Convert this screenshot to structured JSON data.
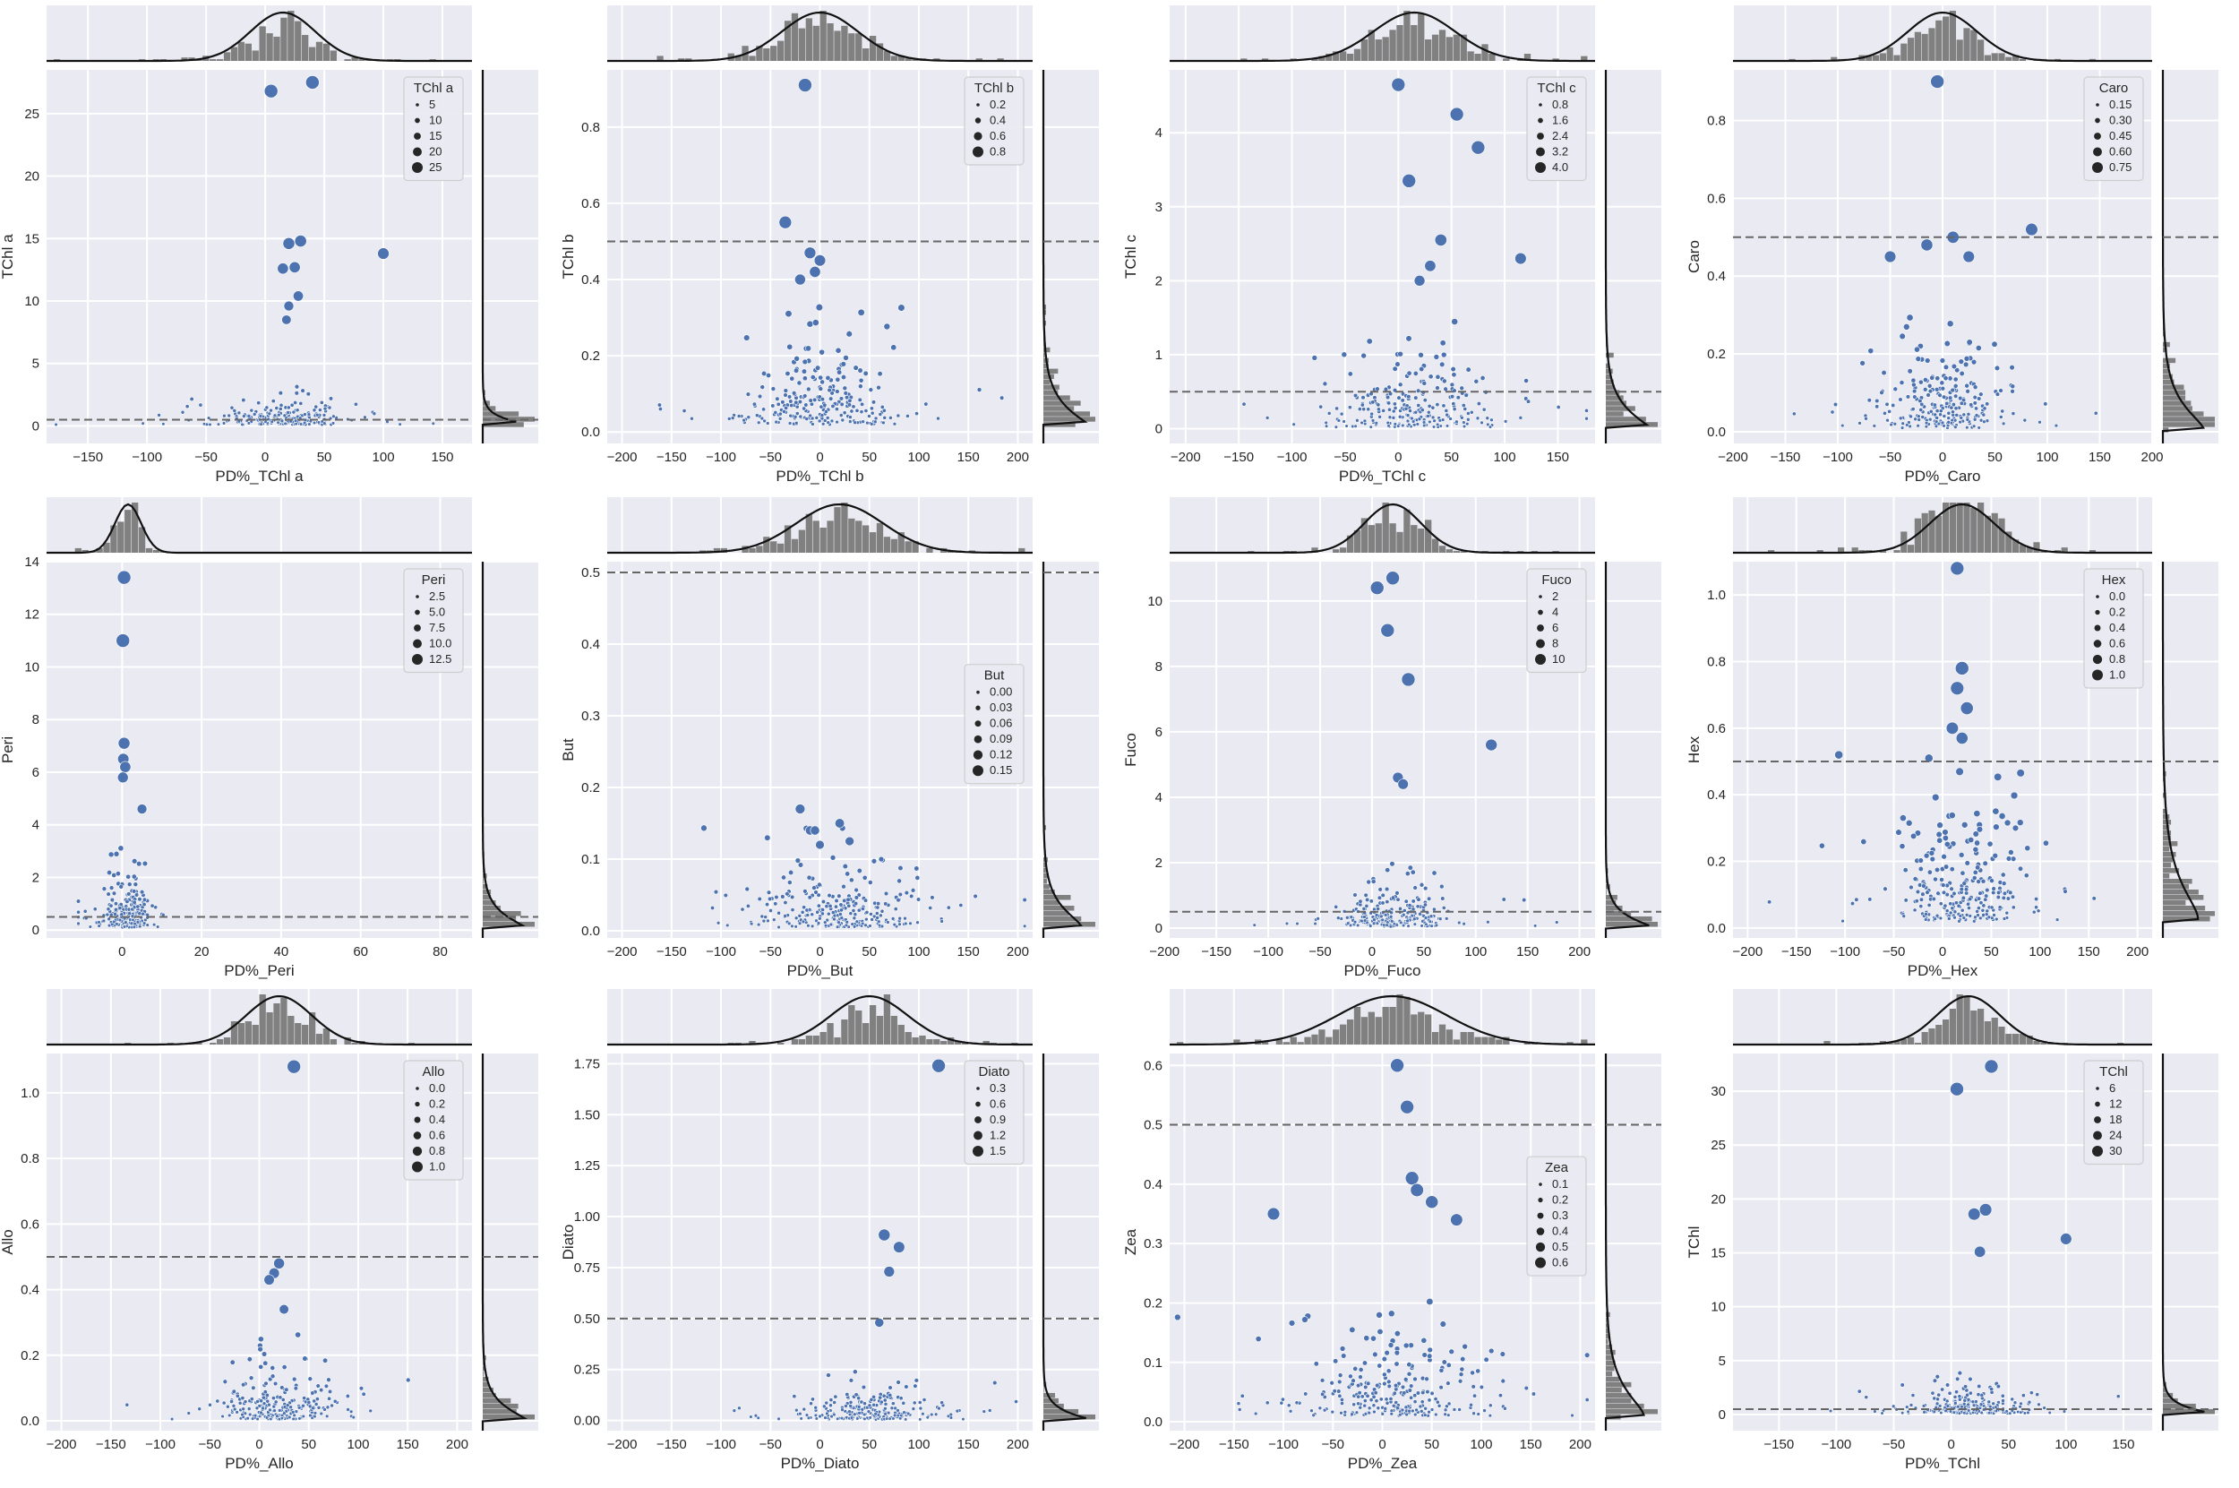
{
  "chart_data": [
    {
      "type": "scatter",
      "marginal": "histogram+kde",
      "xlabel": "PD%_TChl a",
      "ylabel": "TChl a",
      "legend_title": "TChl a",
      "legend_labels": [
        "5",
        "10",
        "15",
        "20",
        "25"
      ],
      "legend_placement": "top-right",
      "xlim": [
        -185,
        175
      ],
      "ylim": [
        -1.4,
        28.5
      ],
      "xticks": [
        -150,
        -100,
        -50,
        0,
        50,
        100,
        150
      ],
      "yticks": [
        0,
        5,
        10,
        15,
        20,
        25
      ],
      "hline": 0.5,
      "grid": true,
      "xtick_labels": [
        "−150",
        "−100",
        "−50",
        "0",
        "50",
        "100",
        "150"
      ],
      "ytick_labels": [
        "0",
        "5",
        "10",
        "15",
        "20",
        "25"
      ],
      "highlights": [
        [
          5,
          26.8
        ],
        [
          40,
          27.5
        ],
        [
          20,
          14.6
        ],
        [
          30,
          14.8
        ],
        [
          100,
          13.8
        ],
        [
          25,
          12.7
        ],
        [
          15,
          12.6
        ],
        [
          28,
          10.4
        ],
        [
          20,
          9.6
        ],
        [
          18,
          8.5
        ]
      ],
      "cloud": {
        "cx": 15,
        "sx": 25,
        "y0": 0.1,
        "yk": 0.6,
        "n": 240
      }
    },
    {
      "type": "scatter",
      "marginal": "histogram+kde",
      "xlabel": "PD%_TChl b",
      "ylabel": "TChl b",
      "legend_title": "TChl b",
      "legend_labels": [
        "0.2",
        "0.4",
        "0.6",
        "0.8"
      ],
      "legend_placement": "top-right",
      "xlim": [
        -215,
        215
      ],
      "ylim": [
        -0.03,
        0.95
      ],
      "xticks": [
        -200,
        -150,
        -100,
        -50,
        0,
        50,
        100,
        150,
        200
      ],
      "yticks": [
        0,
        0.2,
        0.4,
        0.6,
        0.8
      ],
      "hline": 0.5,
      "grid": true,
      "xtick_labels": [
        "−200",
        "−150",
        "−100",
        "−50",
        "0",
        "50",
        "100",
        "150",
        "200"
      ],
      "ytick_labels": [
        "0.0",
        "0.2",
        "0.4",
        "0.6",
        "0.8"
      ],
      "highlights": [
        [
          -15,
          0.91
        ],
        [
          -35,
          0.55
        ],
        [
          -10,
          0.47
        ],
        [
          0,
          0.45
        ],
        [
          -5,
          0.42
        ],
        [
          -20,
          0.4
        ]
      ],
      "cloud": {
        "cx": 0,
        "sx": 35,
        "y0": 0.02,
        "yk": 0.06,
        "n": 240
      }
    },
    {
      "type": "scatter",
      "marginal": "histogram+kde",
      "xlabel": "PD%_TChl c",
      "ylabel": "TChl c",
      "legend_title": "TChl c",
      "legend_labels": [
        "0.8",
        "1.6",
        "2.4",
        "3.2",
        "4.0"
      ],
      "legend_placement": "top-right",
      "xlim": [
        -215,
        185
      ],
      "ylim": [
        -0.2,
        4.85
      ],
      "xticks": [
        -200,
        -150,
        -100,
        -50,
        0,
        50,
        100,
        150
      ],
      "yticks": [
        0,
        1,
        2,
        3,
        4
      ],
      "hline": 0.5,
      "grid": true,
      "xtick_labels": [
        "−200",
        "−150",
        "−100",
        "−50",
        "0",
        "50",
        "100",
        "150"
      ],
      "ytick_labels": [
        "0",
        "1",
        "2",
        "3",
        "4"
      ],
      "highlights": [
        [
          0,
          4.65
        ],
        [
          55,
          4.25
        ],
        [
          75,
          3.8
        ],
        [
          10,
          3.35
        ],
        [
          40,
          2.55
        ],
        [
          115,
          2.3
        ],
        [
          30,
          2.2
        ],
        [
          20,
          2.0
        ]
      ],
      "cloud": {
        "cx": 15,
        "sx": 35,
        "y0": 0.02,
        "yk": 0.3,
        "n": 240
      }
    },
    {
      "type": "scatter",
      "marginal": "histogram+kde",
      "xlabel": "PD%_Caro",
      "ylabel": "Caro",
      "legend_title": "Caro",
      "legend_labels": [
        "0.15",
        "0.30",
        "0.45",
        "0.60",
        "0.75"
      ],
      "legend_placement": "top-right",
      "xlim": [
        -200,
        200
      ],
      "ylim": [
        -0.03,
        0.93
      ],
      "xticks": [
        -200,
        -150,
        -100,
        -50,
        0,
        50,
        100,
        150,
        200
      ],
      "yticks": [
        0,
        0.2,
        0.4,
        0.6,
        0.8
      ],
      "hline": 0.5,
      "grid": true,
      "xtick_labels": [
        "−200",
        "−150",
        "−100",
        "−50",
        "0",
        "50",
        "100",
        "150",
        "200"
      ],
      "ytick_labels": [
        "0.0",
        "0.2",
        "0.4",
        "0.6",
        "0.8"
      ],
      "highlights": [
        [
          -5,
          0.9
        ],
        [
          85,
          0.52
        ],
        [
          10,
          0.5
        ],
        [
          -15,
          0.48
        ],
        [
          25,
          0.45
        ],
        [
          -50,
          0.45
        ]
      ],
      "cloud": {
        "cx": 0,
        "sx": 30,
        "y0": 0.01,
        "yk": 0.07,
        "n": 240
      }
    },
    {
      "type": "scatter",
      "marginal": "histogram+kde",
      "xlabel": "PD%_Peri",
      "ylabel": "Peri",
      "legend_title": "Peri",
      "legend_labels": [
        "2.5",
        "5.0",
        "7.5",
        "10.0",
        "12.5"
      ],
      "legend_placement": "top-right",
      "xlim": [
        -19,
        88
      ],
      "ylim": [
        -0.3,
        14
      ],
      "xticks": [
        0,
        20,
        40,
        60,
        80
      ],
      "yticks": [
        0,
        2,
        4,
        6,
        8,
        10,
        12,
        14
      ],
      "hline": 0.5,
      "grid": true,
      "xtick_labels": [
        "0",
        "20",
        "40",
        "60",
        "80"
      ],
      "ytick_labels": [
        "0",
        "2",
        "4",
        "6",
        "8",
        "10",
        "12",
        "14"
      ],
      "highlights": [
        [
          0.5,
          13.4
        ],
        [
          0.2,
          11.0
        ],
        [
          0.5,
          7.1
        ],
        [
          0.3,
          6.5
        ],
        [
          0.8,
          6.2
        ],
        [
          0.2,
          5.8
        ],
        [
          5,
          4.6
        ]
      ],
      "cloud": {
        "cx": 1.5,
        "sx": 3,
        "y0": 0.1,
        "yk": 0.6,
        "n": 230
      }
    },
    {
      "type": "scatter",
      "marginal": "histogram+kde",
      "xlabel": "PD%_But",
      "ylabel": "But",
      "legend_title": "But",
      "legend_labels": [
        "0.00",
        "0.03",
        "0.06",
        "0.09",
        "0.12",
        "0.15"
      ],
      "legend_placement": "center-right",
      "xlim": [
        -215,
        215
      ],
      "ylim": [
        -0.01,
        0.515
      ],
      "xticks": [
        -200,
        -150,
        -100,
        -50,
        0,
        50,
        100,
        150,
        200
      ],
      "yticks": [
        0,
        0.1,
        0.2,
        0.3,
        0.4,
        0.5
      ],
      "hline": 0.5,
      "grid": true,
      "xtick_labels": [
        "−200",
        "−150",
        "−100",
        "−50",
        "0",
        "50",
        "100",
        "150",
        "200"
      ],
      "ytick_labels": [
        "0.0",
        "0.1",
        "0.2",
        "0.3",
        "0.4",
        "0.5"
      ],
      "highlights": [
        [
          -20,
          0.17
        ],
        [
          20,
          0.15
        ],
        [
          -10,
          0.14
        ],
        [
          -5,
          0.14
        ],
        [
          30,
          0.125
        ],
        [
          0,
          0.12
        ]
      ],
      "cloud": {
        "cx": 20,
        "sx": 40,
        "y0": 0.005,
        "yk": 0.03,
        "n": 260
      }
    },
    {
      "type": "scatter",
      "marginal": "histogram+kde",
      "xlabel": "PD%_Fuco",
      "ylabel": "Fuco",
      "legend_title": "Fuco",
      "legend_labels": [
        "2",
        "4",
        "6",
        "8",
        "10"
      ],
      "legend_placement": "top-right",
      "xlim": [
        -195,
        215
      ],
      "ylim": [
        -0.3,
        11.2
      ],
      "xticks": [
        -200,
        -150,
        -100,
        -50,
        0,
        50,
        100,
        150,
        200
      ],
      "yticks": [
        0,
        2,
        4,
        6,
        8,
        10
      ],
      "hline": 0.5,
      "grid": true,
      "xtick_labels": [
        "−200",
        "−150",
        "−100",
        "−50",
        "0",
        "50",
        "100",
        "150",
        "200"
      ],
      "ytick_labels": [
        "0",
        "2",
        "4",
        "6",
        "8",
        "10"
      ],
      "highlights": [
        [
          20,
          10.7
        ],
        [
          5,
          10.4
        ],
        [
          15,
          9.1
        ],
        [
          35,
          7.6
        ],
        [
          115,
          5.6
        ],
        [
          25,
          4.6
        ],
        [
          30,
          4.4
        ]
      ],
      "cloud": {
        "cx": 20,
        "sx": 25,
        "y0": 0.05,
        "yk": 0.4,
        "n": 240
      }
    },
    {
      "type": "scatter",
      "marginal": "histogram+kde",
      "xlabel": "PD%_Hex",
      "ylabel": "Hex",
      "legend_title": "Hex",
      "legend_labels": [
        "0.0",
        "0.2",
        "0.4",
        "0.6",
        "0.8",
        "1.0"
      ],
      "legend_placement": "top-right",
      "xlim": [
        -215,
        215
      ],
      "ylim": [
        -0.03,
        1.1
      ],
      "xticks": [
        -200,
        -150,
        -100,
        -50,
        0,
        50,
        100,
        150,
        200
      ],
      "yticks": [
        0,
        0.2,
        0.4,
        0.6,
        0.8,
        1.0
      ],
      "hline": 0.5,
      "grid": true,
      "xtick_labels": [
        "−200",
        "−150",
        "−100",
        "−50",
        "0",
        "50",
        "100",
        "150",
        "200"
      ],
      "ytick_labels": [
        "0.0",
        "0.2",
        "0.4",
        "0.6",
        "0.8",
        "1.0"
      ],
      "highlights": [
        [
          15,
          1.08
        ],
        [
          20,
          0.78
        ],
        [
          15,
          0.72
        ],
        [
          25,
          0.66
        ],
        [
          10,
          0.6
        ],
        [
          20,
          0.57
        ]
      ],
      "cloud": {
        "cx": 20,
        "sx": 30,
        "y0": 0.02,
        "yk": 0.12,
        "n": 260
      }
    },
    {
      "type": "scatter",
      "marginal": "histogram+kde",
      "xlabel": "PD%_Allo",
      "ylabel": "Allo",
      "legend_title": "Allo",
      "legend_labels": [
        "0.0",
        "0.2",
        "0.4",
        "0.6",
        "0.8",
        "1.0"
      ],
      "legend_placement": "top-right",
      "xlim": [
        -215,
        215
      ],
      "ylim": [
        -0.03,
        1.12
      ],
      "xticks": [
        -200,
        -150,
        -100,
        -50,
        0,
        50,
        100,
        150,
        200
      ],
      "yticks": [
        0,
        0.2,
        0.4,
        0.6,
        0.8,
        1.0
      ],
      "hline": 0.5,
      "grid": true,
      "xtick_labels": [
        "−200",
        "−150",
        "−100",
        "−50",
        "0",
        "50",
        "100",
        "150",
        "200"
      ],
      "ytick_labels": [
        "0.0",
        "0.2",
        "0.4",
        "0.6",
        "0.8",
        "1.0"
      ],
      "highlights": [
        [
          35,
          1.08
        ],
        [
          20,
          0.48
        ],
        [
          15,
          0.45
        ],
        [
          10,
          0.43
        ],
        [
          25,
          0.34
        ]
      ],
      "cloud": {
        "cx": 20,
        "sx": 30,
        "y0": 0.005,
        "yk": 0.05,
        "n": 240
      }
    },
    {
      "type": "scatter",
      "marginal": "histogram+kde",
      "xlabel": "PD%_Diato",
      "ylabel": "Diato",
      "legend_title": "Diato",
      "legend_labels": [
        "0.3",
        "0.6",
        "0.9",
        "1.2",
        "1.5"
      ],
      "legend_placement": "top-right",
      "xlim": [
        -215,
        215
      ],
      "ylim": [
        -0.05,
        1.8
      ],
      "xticks": [
        -200,
        -150,
        -100,
        -50,
        0,
        50,
        100,
        150,
        200
      ],
      "yticks": [
        0,
        0.25,
        0.5,
        0.75,
        1.0,
        1.25,
        1.5,
        1.75
      ],
      "hline": 0.5,
      "grid": true,
      "xtick_labels": [
        "−200",
        "−150",
        "−100",
        "−50",
        "0",
        "50",
        "100",
        "150",
        "200"
      ],
      "ytick_labels": [
        "0.00",
        "0.25",
        "0.50",
        "0.75",
        "1.00",
        "1.25",
        "1.50",
        "1.75"
      ],
      "highlights": [
        [
          120,
          1.74
        ],
        [
          65,
          0.91
        ],
        [
          80,
          0.85
        ],
        [
          70,
          0.73
        ],
        [
          60,
          0.48
        ]
      ],
      "cloud": {
        "cx": 50,
        "sx": 35,
        "y0": 0.005,
        "yk": 0.05,
        "n": 240
      }
    },
    {
      "type": "scatter",
      "marginal": "histogram+kde",
      "xlabel": "PD%_Zea",
      "ylabel": "Zea",
      "legend_title": "Zea",
      "legend_labels": [
        "0.1",
        "0.2",
        "0.3",
        "0.4",
        "0.5",
        "0.6"
      ],
      "legend_placement": "center-right",
      "xlim": [
        -215,
        215
      ],
      "ylim": [
        -0.015,
        0.62
      ],
      "xticks": [
        -200,
        -150,
        -100,
        -50,
        0,
        50,
        100,
        150,
        200
      ],
      "yticks": [
        0,
        0.1,
        0.2,
        0.3,
        0.4,
        0.5,
        0.6
      ],
      "hline": 0.5,
      "grid": true,
      "xtick_labels": [
        "−200",
        "−150",
        "−100",
        "−50",
        "0",
        "50",
        "100",
        "150",
        "200"
      ],
      "ytick_labels": [
        "0.0",
        "0.1",
        "0.2",
        "0.3",
        "0.4",
        "0.5",
        "0.6"
      ],
      "highlights": [
        [
          15,
          0.6
        ],
        [
          25,
          0.53
        ],
        [
          30,
          0.41
        ],
        [
          35,
          0.39
        ],
        [
          50,
          0.37
        ],
        [
          -110,
          0.35
        ],
        [
          75,
          0.34
        ]
      ],
      "cloud": {
        "cx": 10,
        "sx": 50,
        "y0": 0.01,
        "yk": 0.05,
        "n": 260
      }
    },
    {
      "type": "scatter",
      "marginal": "histogram+kde",
      "xlabel": "PD%_TChl",
      "ylabel": "TChl",
      "legend_title": "TChl",
      "legend_labels": [
        "6",
        "12",
        "18",
        "24",
        "30"
      ],
      "legend_placement": "top-right",
      "xlim": [
        -190,
        175
      ],
      "ylim": [
        -1.5,
        33.5
      ],
      "xticks": [
        -150,
        -100,
        -50,
        0,
        50,
        100,
        150
      ],
      "yticks": [
        0,
        5,
        10,
        15,
        20,
        25,
        30
      ],
      "hline": 0.5,
      "grid": true,
      "xtick_labels": [
        "−150",
        "−100",
        "−50",
        "0",
        "50",
        "100",
        "150"
      ],
      "ytick_labels": [
        "0",
        "5",
        "10",
        "15",
        "20",
        "25",
        "30"
      ],
      "highlights": [
        [
          35,
          32.3
        ],
        [
          5,
          30.2
        ],
        [
          30,
          19.0
        ],
        [
          20,
          18.6
        ],
        [
          100,
          16.3
        ],
        [
          25,
          15.1
        ]
      ],
      "cloud": {
        "cx": 15,
        "sx": 25,
        "y0": 0.1,
        "yk": 0.8,
        "n": 240
      }
    }
  ]
}
